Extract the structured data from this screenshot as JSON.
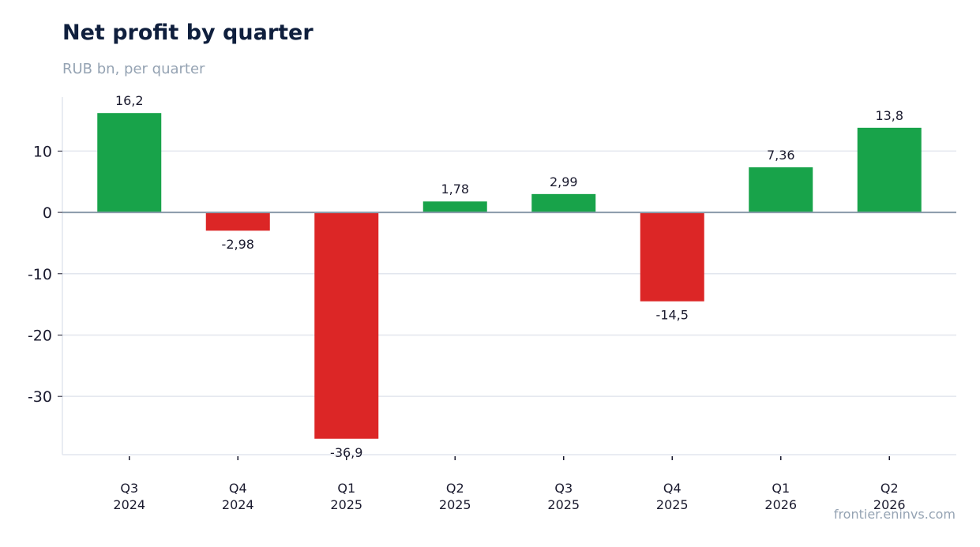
{
  "header": {
    "title": "Net profit by quarter",
    "subtitle": "RUB bn, per quarter"
  },
  "footer": {
    "source": "frontier.eninvs.com"
  },
  "colors": {
    "positive": "#18a34a",
    "negative": "#dc2626",
    "grid": "#e2e6ee",
    "zero_line": "#8a9aaa"
  },
  "chart_data": {
    "type": "bar",
    "categories": [
      [
        "Q3",
        "2024"
      ],
      [
        "Q4",
        "2024"
      ],
      [
        "Q1",
        "2025"
      ],
      [
        "Q2",
        "2025"
      ],
      [
        "Q3",
        "2025"
      ],
      [
        "Q4",
        "2025"
      ],
      [
        "Q1",
        "2026"
      ],
      [
        "Q2",
        "2026"
      ]
    ],
    "values": [
      16.2,
      -2.98,
      -36.9,
      1.78,
      2.99,
      -14.5,
      7.36,
      13.8
    ],
    "value_labels": [
      "16,2",
      "-2,98",
      "-36,9",
      "1,78",
      "2,99",
      "-14,5",
      "7,36",
      "13,8"
    ],
    "yticks": [
      10,
      0,
      -10,
      -20,
      -30
    ],
    "ylim": [
      -39.5,
      18.8
    ],
    "grid": true,
    "legend": "none"
  }
}
